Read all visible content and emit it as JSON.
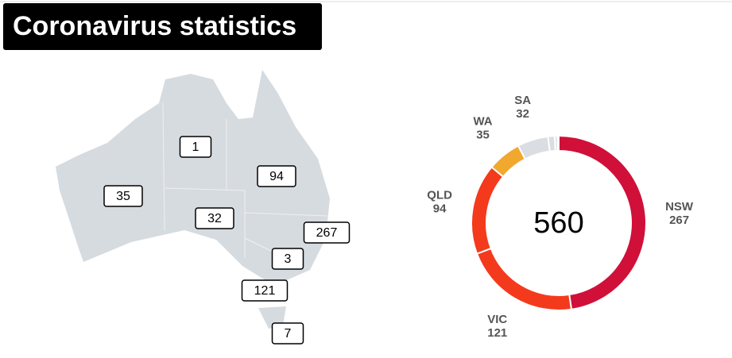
{
  "title": "Coronavirus statistics",
  "map": {
    "values": [
      1,
      94,
      35,
      32,
      267,
      3,
      121,
      7
    ]
  },
  "chart_data": {
    "type": "donut",
    "categories": [
      "NSW",
      "VIC",
      "QLD",
      "WA",
      "SA",
      null,
      null,
      null
    ],
    "values": [
      267,
      121,
      94,
      35,
      32,
      7,
      3,
      1
    ],
    "colors": [
      "#d01038",
      "#f43a1d",
      "#f43a1d",
      "#f0a82e",
      "#dadee2",
      "#dadee2",
      "#dadee2",
      "#dadee2"
    ],
    "total": 560
  }
}
